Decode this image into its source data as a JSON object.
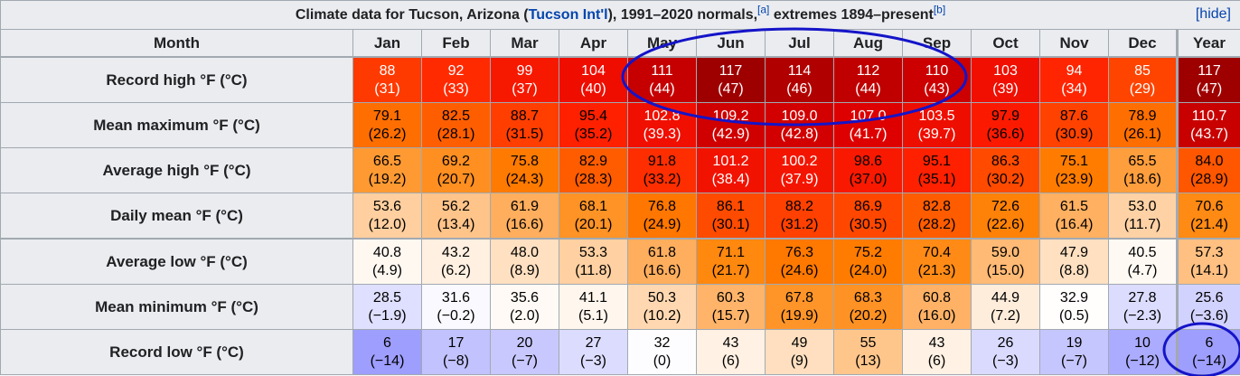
{
  "caption": {
    "prefix": "Climate data for Tucson, Arizona (",
    "link": "Tucson Int'l",
    "middle": "), 1991–2020 normals,",
    "note_a": "[a]",
    "extremes": " extremes 1894–present",
    "note_b": "[b]",
    "hide": "[hide]"
  },
  "header": {
    "month": "Month",
    "months": [
      "Jan",
      "Feb",
      "Mar",
      "Apr",
      "May",
      "Jun",
      "Jul",
      "Aug",
      "Sep",
      "Oct",
      "Nov",
      "Dec",
      "Year"
    ]
  },
  "rows": [
    {
      "label": "Record high °F (°C)",
      "cells": [
        {
          "f": "88",
          "c": "(31)",
          "bg": "#ff3a00",
          "fg": "#ffffff"
        },
        {
          "f": "92",
          "c": "(33)",
          "bg": "#ff2a00",
          "fg": "#ffffff"
        },
        {
          "f": "99",
          "c": "(37)",
          "bg": "#f71800",
          "fg": "#ffffff"
        },
        {
          "f": "104",
          "c": "(40)",
          "bg": "#ef0d00",
          "fg": "#ffffff"
        },
        {
          "f": "111",
          "c": "(44)",
          "bg": "#c60000",
          "fg": "#ffffff"
        },
        {
          "f": "117",
          "c": "(47)",
          "bg": "#9e0000",
          "fg": "#ffffff"
        },
        {
          "f": "114",
          "c": "(46)",
          "bg": "#b10000",
          "fg": "#ffffff"
        },
        {
          "f": "112",
          "c": "(44)",
          "bg": "#c00000",
          "fg": "#ffffff"
        },
        {
          "f": "110",
          "c": "(43)",
          "bg": "#cc0000",
          "fg": "#ffffff"
        },
        {
          "f": "103",
          "c": "(39)",
          "bg": "#f00f00",
          "fg": "#ffffff"
        },
        {
          "f": "94",
          "c": "(34)",
          "bg": "#ff2500",
          "fg": "#ffffff"
        },
        {
          "f": "85",
          "c": "(29)",
          "bg": "#ff4400",
          "fg": "#ffffff"
        },
        {
          "f": "117",
          "c": "(47)",
          "bg": "#9e0000",
          "fg": "#ffffff"
        }
      ]
    },
    {
      "label": "Mean maximum °F (°C)",
      "cells": [
        {
          "f": "79.1",
          "c": "(26.2)",
          "bg": "#ff6e00",
          "fg": "#000000"
        },
        {
          "f": "82.5",
          "c": "(28.1)",
          "bg": "#ff5e00",
          "fg": "#000000"
        },
        {
          "f": "88.7",
          "c": "(31.5)",
          "bg": "#ff3e00",
          "fg": "#000000"
        },
        {
          "f": "95.4",
          "c": "(35.2)",
          "bg": "#ff2000",
          "fg": "#000000"
        },
        {
          "f": "102.8",
          "c": "(39.3)",
          "bg": "#f00f00",
          "fg": "#ffffff"
        },
        {
          "f": "109.2",
          "c": "(42.9)",
          "bg": "#d00000",
          "fg": "#ffffff"
        },
        {
          "f": "109.0",
          "c": "(42.8)",
          "bg": "#d20000",
          "fg": "#ffffff"
        },
        {
          "f": "107.0",
          "c": "(41.7)",
          "bg": "#de0000",
          "fg": "#ffffff"
        },
        {
          "f": "103.5",
          "c": "(39.7)",
          "bg": "#ee0e00",
          "fg": "#ffffff"
        },
        {
          "f": "97.9",
          "c": "(36.6)",
          "bg": "#fb1a00",
          "fg": "#000000"
        },
        {
          "f": "87.6",
          "c": "(30.9)",
          "bg": "#ff4200",
          "fg": "#000000"
        },
        {
          "f": "78.9",
          "c": "(26.1)",
          "bg": "#ff6e00",
          "fg": "#000000"
        },
        {
          "f": "110.7",
          "c": "(43.7)",
          "bg": "#c80000",
          "fg": "#ffffff"
        }
      ]
    },
    {
      "label": "Average high °F (°C)",
      "cells": [
        {
          "f": "66.5",
          "c": "(19.2)",
          "bg": "#ff9a33",
          "fg": "#000000"
        },
        {
          "f": "69.2",
          "c": "(20.7)",
          "bg": "#ff8f20",
          "fg": "#000000"
        },
        {
          "f": "75.8",
          "c": "(24.3)",
          "bg": "#ff7a00",
          "fg": "#000000"
        },
        {
          "f": "82.9",
          "c": "(28.3)",
          "bg": "#ff5c00",
          "fg": "#000000"
        },
        {
          "f": "91.8",
          "c": "(33.2)",
          "bg": "#ff2e00",
          "fg": "#000000"
        },
        {
          "f": "101.2",
          "c": "(38.4)",
          "bg": "#f21200",
          "fg": "#ffffff"
        },
        {
          "f": "100.2",
          "c": "(37.9)",
          "bg": "#f41500",
          "fg": "#ffffff"
        },
        {
          "f": "98.6",
          "c": "(37.0)",
          "bg": "#f81900",
          "fg": "#000000"
        },
        {
          "f": "95.1",
          "c": "(35.1)",
          "bg": "#ff2000",
          "fg": "#000000"
        },
        {
          "f": "86.3",
          "c": "(30.2)",
          "bg": "#ff4a00",
          "fg": "#000000"
        },
        {
          "f": "75.1",
          "c": "(23.9)",
          "bg": "#ff7c00",
          "fg": "#000000"
        },
        {
          "f": "65.5",
          "c": "(18.6)",
          "bg": "#ff9e3c",
          "fg": "#000000"
        },
        {
          "f": "84.0",
          "c": "(28.9)",
          "bg": "#ff5600",
          "fg": "#000000"
        }
      ]
    },
    {
      "label": "Daily mean °F (°C)",
      "cells": [
        {
          "f": "53.6",
          "c": "(12.0)",
          "bg": "#ffcf9f",
          "fg": "#000000"
        },
        {
          "f": "56.2",
          "c": "(13.4)",
          "bg": "#ffc48a",
          "fg": "#000000"
        },
        {
          "f": "61.9",
          "c": "(16.6)",
          "bg": "#ffae5d",
          "fg": "#000000"
        },
        {
          "f": "68.1",
          "c": "(20.1)",
          "bg": "#ff9326",
          "fg": "#000000"
        },
        {
          "f": "76.8",
          "c": "(24.9)",
          "bg": "#ff7600",
          "fg": "#000000"
        },
        {
          "f": "86.1",
          "c": "(30.1)",
          "bg": "#ff4b00",
          "fg": "#000000"
        },
        {
          "f": "88.2",
          "c": "(31.2)",
          "bg": "#ff4000",
          "fg": "#000000"
        },
        {
          "f": "86.9",
          "c": "(30.5)",
          "bg": "#ff4700",
          "fg": "#000000"
        },
        {
          "f": "82.8",
          "c": "(28.2)",
          "bg": "#ff5c00",
          "fg": "#000000"
        },
        {
          "f": "72.6",
          "c": "(22.6)",
          "bg": "#ff8208",
          "fg": "#000000"
        },
        {
          "f": "61.5",
          "c": "(16.4)",
          "bg": "#ffb060",
          "fg": "#000000"
        },
        {
          "f": "53.0",
          "c": "(11.7)",
          "bg": "#ffd2a5",
          "fg": "#000000"
        },
        {
          "f": "70.6",
          "c": "(21.4)",
          "bg": "#ff8a14",
          "fg": "#000000"
        }
      ]
    },
    {
      "label": "Average low °F (°C)",
      "cells": [
        {
          "f": "40.8",
          "c": "(4.9)",
          "bg": "#fff8f1",
          "fg": "#000000"
        },
        {
          "f": "43.2",
          "c": "(6.2)",
          "bg": "#fff0e1",
          "fg": "#000000"
        },
        {
          "f": "48.0",
          "c": "(8.9)",
          "bg": "#ffe0c1",
          "fg": "#000000"
        },
        {
          "f": "53.3",
          "c": "(11.8)",
          "bg": "#ffd0a1",
          "fg": "#000000"
        },
        {
          "f": "61.8",
          "c": "(16.6)",
          "bg": "#ffae5d",
          "fg": "#000000"
        },
        {
          "f": "71.1",
          "c": "(21.7)",
          "bg": "#ff880f",
          "fg": "#000000"
        },
        {
          "f": "76.3",
          "c": "(24.6)",
          "bg": "#ff7800",
          "fg": "#000000"
        },
        {
          "f": "75.2",
          "c": "(24.0)",
          "bg": "#ff7c00",
          "fg": "#000000"
        },
        {
          "f": "70.4",
          "c": "(21.3)",
          "bg": "#ff8b16",
          "fg": "#000000"
        },
        {
          "f": "59.0",
          "c": "(15.0)",
          "bg": "#ffba75",
          "fg": "#000000"
        },
        {
          "f": "47.9",
          "c": "(8.8)",
          "bg": "#ffe0c1",
          "fg": "#000000"
        },
        {
          "f": "40.5",
          "c": "(4.7)",
          "bg": "#fff9f3",
          "fg": "#000000"
        },
        {
          "f": "57.3",
          "c": "(14.1)",
          "bg": "#ffc082",
          "fg": "#000000"
        }
      ]
    },
    {
      "label": "Mean minimum °F (°C)",
      "cells": [
        {
          "f": "28.5",
          "c": "(−1.9)",
          "bg": "#dfdfff",
          "fg": "#000000"
        },
        {
          "f": "31.6",
          "c": "(−0.2)",
          "bg": "#f9f9ff",
          "fg": "#000000"
        },
        {
          "f": "35.6",
          "c": "(2.0)",
          "bg": "#fffaf5",
          "fg": "#000000"
        },
        {
          "f": "41.1",
          "c": "(5.1)",
          "bg": "#fff6ed",
          "fg": "#000000"
        },
        {
          "f": "50.3",
          "c": "(10.2)",
          "bg": "#ffd8b1",
          "fg": "#000000"
        },
        {
          "f": "60.3",
          "c": "(15.7)",
          "bg": "#ffb46a",
          "fg": "#000000"
        },
        {
          "f": "67.8",
          "c": "(19.9)",
          "bg": "#ff9529",
          "fg": "#000000"
        },
        {
          "f": "68.3",
          "c": "(20.2)",
          "bg": "#ff9224",
          "fg": "#000000"
        },
        {
          "f": "60.8",
          "c": "(16.0)",
          "bg": "#ffb266",
          "fg": "#000000"
        },
        {
          "f": "44.9",
          "c": "(7.2)",
          "bg": "#ffeddb",
          "fg": "#000000"
        },
        {
          "f": "32.9",
          "c": "(0.5)",
          "bg": "#fffefd",
          "fg": "#000000"
        },
        {
          "f": "27.8",
          "c": "(−2.3)",
          "bg": "#dcdcff",
          "fg": "#000000"
        },
        {
          "f": "25.6",
          "c": "(−3.6)",
          "bg": "#d2d2ff",
          "fg": "#000000"
        }
      ]
    },
    {
      "label": "Record low °F (°C)",
      "cells": [
        {
          "f": "6",
          "c": "(−14)",
          "bg": "#9e9eff",
          "fg": "#000000"
        },
        {
          "f": "17",
          "c": "(−8)",
          "bg": "#c2c2ff",
          "fg": "#000000"
        },
        {
          "f": "20",
          "c": "(−7)",
          "bg": "#c8c8ff",
          "fg": "#000000"
        },
        {
          "f": "27",
          "c": "(−3)",
          "bg": "#dcdcff",
          "fg": "#000000"
        },
        {
          "f": "32",
          "c": "(0)",
          "bg": "#fdfdff",
          "fg": "#000000"
        },
        {
          "f": "43",
          "c": "(6)",
          "bg": "#fff1e3",
          "fg": "#000000"
        },
        {
          "f": "49",
          "c": "(9)",
          "bg": "#ffdfbf",
          "fg": "#000000"
        },
        {
          "f": "55",
          "c": "(13)",
          "bg": "#ffc68c",
          "fg": "#000000"
        },
        {
          "f": "43",
          "c": "(6)",
          "bg": "#fff1e3",
          "fg": "#000000"
        },
        {
          "f": "26",
          "c": "(−3)",
          "bg": "#dadaff",
          "fg": "#000000"
        },
        {
          "f": "19",
          "c": "(−7)",
          "bg": "#c6c6ff",
          "fg": "#000000"
        },
        {
          "f": "10",
          "c": "(−12)",
          "bg": "#ababff",
          "fg": "#000000"
        },
        {
          "f": "6",
          "c": "(−14)",
          "bg": "#9e9eff",
          "fg": "#000000"
        }
      ]
    }
  ],
  "annotations": {
    "ellipse_color": "#1414c8"
  }
}
